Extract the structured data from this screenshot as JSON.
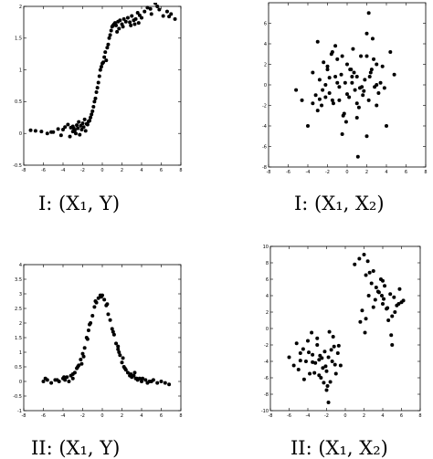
{
  "chart_data": [
    {
      "type": "scatter",
      "caption": "I: (X₁, Y)",
      "xlim": [
        -8,
        8
      ],
      "ylim": [
        -0.5,
        2.0
      ],
      "xticks": [
        -8,
        -6,
        -4,
        -2,
        0,
        2,
        4,
        6,
        8
      ],
      "yticks": [
        -0.5,
        0,
        0.5,
        1,
        1.5,
        2
      ],
      "ytick_labels": [
        "-0.5",
        "0",
        "0.5",
        "1",
        "1.5",
        "2"
      ],
      "grid": false,
      "x": [
        -7.3,
        -6.8,
        -6.2,
        -5.6,
        -5.0,
        -4.5,
        -4.0,
        -3.8,
        -3.5,
        -3.2,
        -3.0,
        -2.8,
        -2.6,
        -2.4,
        -2.2,
        -2.0,
        -1.8,
        -1.6,
        -1.4,
        -1.2,
        -3.3,
        -3.0,
        -2.7,
        -2.5,
        -2.3,
        -2.1,
        -1.9,
        -1.7,
        -1.5,
        -1.3,
        -1.1,
        -0.9,
        -0.7,
        -0.6,
        -0.5,
        -0.4,
        -0.3,
        -0.2,
        -0.1,
        0.0,
        0.1,
        0.2,
        0.3,
        0.5,
        0.6,
        0.7,
        0.8,
        0.9,
        1.0,
        1.1,
        1.2,
        1.3,
        1.4,
        1.6,
        1.8,
        2.0,
        2.2,
        2.4,
        2.6,
        2.8,
        3.0,
        3.2,
        3.4,
        3.6,
        3.8,
        4.0,
        4.3,
        4.6,
        5.0,
        5.4,
        5.8,
        6.2,
        6.6,
        7.0,
        7.4,
        -5.2,
        -4.2,
        -2.9,
        1.7,
        2.9,
        3.7,
        4.9,
        5.6,
        6.8,
        -1.0,
        -0.8,
        0.4,
        1.5,
        2.1,
        3.3
      ],
      "y": [
        0.05,
        0.04,
        0.03,
        0.0,
        0.02,
        0.07,
        0.06,
        0.1,
        0.14,
        0.09,
        0.11,
        0.05,
        0.13,
        0.18,
        0.12,
        0.16,
        0.22,
        0.15,
        0.19,
        0.25,
        -0.05,
        0.03,
        0.0,
        0.08,
        -0.02,
        0.06,
        0.1,
        0.04,
        0.14,
        0.2,
        0.3,
        0.42,
        0.55,
        0.65,
        0.72,
        0.8,
        0.9,
        1.0,
        1.05,
        1.1,
        1.12,
        1.2,
        1.28,
        1.35,
        1.4,
        1.5,
        1.55,
        1.62,
        1.68,
        1.7,
        1.72,
        1.74,
        1.7,
        1.76,
        1.78,
        1.72,
        1.8,
        1.76,
        1.82,
        1.75,
        1.85,
        1.78,
        1.8,
        1.9,
        1.86,
        1.82,
        1.92,
        1.98,
        1.88,
        2.05,
        1.95,
        1.85,
        1.92,
        1.88,
        1.8,
        0.02,
        -0.03,
        0.08,
        1.65,
        1.7,
        1.74,
        1.96,
        2.0,
        1.84,
        0.35,
        0.5,
        1.15,
        1.6,
        1.68,
        1.72
      ]
    },
    {
      "type": "scatter",
      "caption": "I: (X₁, X₂)",
      "xlim": [
        -8,
        8
      ],
      "ylim": [
        -8,
        8
      ],
      "xticks": [
        -8,
        -6,
        -4,
        -2,
        0,
        2,
        4,
        6,
        8
      ],
      "yticks": [
        -8,
        -6,
        -4,
        -2,
        0,
        2,
        4,
        6
      ],
      "ytick_labels": [
        "-8",
        "-6",
        "-4",
        "-2",
        "0",
        "2",
        "4",
        "6"
      ],
      "grid": false,
      "x": [
        -5.2,
        -4.6,
        -4.0,
        -3.5,
        -3.2,
        -3.0,
        -2.8,
        -2.6,
        -2.4,
        -2.2,
        -2.0,
        -1.8,
        -1.6,
        -1.4,
        -1.2,
        -1.0,
        -0.8,
        -0.6,
        -0.4,
        -0.2,
        0.0,
        0.2,
        0.4,
        0.6,
        0.8,
        1.0,
        1.2,
        1.4,
        1.6,
        1.8,
        2.0,
        2.2,
        2.4,
        2.6,
        2.8,
        3.0,
        3.2,
        3.4,
        3.6,
        4.0,
        4.4,
        4.8,
        -3.0,
        -2.5,
        -2.0,
        -1.5,
        -1.0,
        -0.5,
        0.0,
        0.5,
        1.0,
        1.5,
        2.0,
        2.5,
        3.0,
        -2.2,
        -1.2,
        -0.3,
        0.7,
        1.7,
        2.7,
        -1.8,
        -0.8,
        0.3,
        1.3,
        2.3,
        -0.5,
        1.0,
        -3.5,
        2.2,
        3.8,
        -1.5,
        0.5,
        2.0,
        3.0,
        -2.8,
        -0.1,
        1.1
      ],
      "y": [
        -0.5,
        -1.5,
        -4.0,
        1.2,
        -1.0,
        4.2,
        0.5,
        -2.0,
        2.2,
        0.0,
        1.5,
        -0.8,
        3.0,
        -1.8,
        0.8,
        2.5,
        -0.2,
        1.0,
        -3.0,
        0.2,
        2.0,
        -1.2,
        1.5,
        3.5,
        -0.5,
        0.8,
        -2.2,
        2.8,
        -1.0,
        0.5,
        5.0,
        -1.5,
        1.2,
        4.5,
        -0.2,
        2.0,
        -0.8,
        0.2,
        1.8,
        -4.0,
        3.2,
        1.0,
        -2.5,
        -0.5,
        1.8,
        -1.5,
        0.2,
        2.8,
        -0.9,
        0.8,
        -1.8,
        -0.2,
        -5.0,
        1.5,
        0.0,
        -1.2,
        3.8,
        -2.8,
        1.2,
        -0.6,
        2.5,
        0.7,
        -1.5,
        1.5,
        -0.3,
        0.8,
        -4.8,
        -3.2,
        -1.8,
        7.0,
        -0.3,
        3.2,
        0.2,
        2.8,
        -2.0,
        -1.4,
        -3.6,
        -7.0
      ]
    },
    {
      "type": "scatter",
      "caption": "II: (X₁, Y)",
      "xlim": [
        -8,
        8
      ],
      "ylim": [
        -1,
        4
      ],
      "xticks": [
        -8,
        -6,
        -4,
        -2,
        0,
        2,
        4,
        6,
        8
      ],
      "yticks": [
        -1,
        -0.5,
        0,
        0.5,
        1,
        1.5,
        2,
        2.5,
        3,
        3.5,
        4
      ],
      "ytick_labels": [
        "-1",
        "-0.5",
        "0",
        "0.5",
        "1",
        "1.5",
        "2",
        "2.5",
        "3",
        "3.5",
        "4"
      ],
      "grid": false,
      "x": [
        -6.0,
        -5.6,
        -5.2,
        -4.8,
        -4.4,
        -4.0,
        -3.8,
        -3.6,
        -3.4,
        -3.2,
        -3.0,
        -2.8,
        -2.6,
        -2.4,
        -2.2,
        -2.0,
        -1.8,
        -1.6,
        -1.4,
        -1.2,
        -1.0,
        -0.8,
        -0.6,
        -0.4,
        -0.2,
        0.0,
        0.2,
        0.4,
        0.6,
        0.8,
        1.0,
        1.2,
        1.4,
        1.6,
        1.8,
        2.0,
        2.2,
        2.4,
        2.6,
        2.8,
        3.0,
        3.2,
        3.4,
        3.6,
        3.8,
        4.0,
        4.4,
        4.8,
        5.2,
        5.6,
        6.0,
        6.4,
        6.8,
        -4.6,
        -3.9,
        -3.0,
        -2.5,
        -1.9,
        -1.3,
        -0.7,
        -0.1,
        0.5,
        1.1,
        1.7,
        2.3,
        2.9,
        3.5,
        4.1,
        5.0,
        -5.8,
        -2.1,
        -1.5,
        1.6,
        2.1,
        3.3,
        4.6
      ],
      "y": [
        0.0,
        0.05,
        -0.05,
        0.05,
        0.0,
        0.1,
        0.05,
        0.15,
        0.0,
        0.2,
        0.25,
        0.3,
        0.45,
        0.55,
        0.75,
        0.95,
        1.15,
        1.5,
        1.75,
        2.0,
        2.25,
        2.55,
        2.7,
        2.85,
        2.95,
        2.95,
        2.8,
        2.6,
        2.3,
        2.1,
        1.8,
        1.6,
        1.3,
        1.1,
        0.9,
        0.65,
        0.5,
        0.4,
        0.3,
        0.2,
        0.15,
        0.2,
        0.1,
        0.05,
        0.1,
        0.0,
        0.05,
        0.0,
        0.05,
        -0.05,
        0.0,
        -0.05,
        -0.1,
        0.05,
        0.15,
        0.1,
        0.5,
        0.85,
        1.95,
        2.75,
        2.9,
        2.65,
        1.7,
        1.0,
        0.45,
        0.25,
        0.1,
        0.1,
        0.0,
        0.1,
        0.6,
        1.45,
        1.2,
        0.8,
        0.3,
        -0.05
      ]
    },
    {
      "type": "scatter",
      "caption": "II: (X₁, X₂)",
      "xlim": [
        -8,
        8
      ],
      "ylim": [
        -10,
        10
      ],
      "xticks": [
        -8,
        -6,
        -4,
        -2,
        0,
        2,
        4,
        6,
        8
      ],
      "yticks": [
        -10,
        -8,
        -6,
        -4,
        -2,
        0,
        2,
        4,
        6,
        8,
        10
      ],
      "ytick_labels": [
        "-10",
        "-8",
        "-6",
        "-4",
        "-2",
        "0",
        "2",
        "4",
        "6",
        "8",
        "10"
      ],
      "grid": false,
      "x": [
        -6.0,
        -5.5,
        -5.0,
        -4.8,
        -4.5,
        -4.2,
        -4.0,
        -3.8,
        -3.5,
        -3.2,
        -3.0,
        -2.8,
        -2.6,
        -2.4,
        -2.2,
        -2.0,
        -1.8,
        -1.6,
        -1.4,
        -1.2,
        -1.0,
        -0.8,
        -0.5,
        -3.6,
        -3.0,
        -2.5,
        -1.9,
        -1.5,
        -1.1,
        -4.4,
        -3.3,
        -2.7,
        -2.1,
        -1.7,
        -5.2,
        -3.9,
        -2.3,
        -1.3,
        -0.7,
        -2.0,
        -1.8,
        -3.5,
        -2.8,
        -4.8,
        1.0,
        1.5,
        2.0,
        2.2,
        2.5,
        2.8,
        3.0,
        3.2,
        3.5,
        3.8,
        4.0,
        4.2,
        4.5,
        4.8,
        5.0,
        5.2,
        5.5,
        5.8,
        6.0,
        1.8,
        2.6,
        3.3,
        4.1,
        4.6,
        5.3,
        2.4,
        3.6,
        4.4,
        5.7,
        3.0,
        4.9,
        2.1,
        3.9,
        6.2,
        1.6,
        2.2,
        4.0,
        5.0
      ],
      "y": [
        -3.5,
        -4.5,
        -5.0,
        -3.0,
        -2.5,
        -4.0,
        -1.5,
        -5.5,
        -3.2,
        -4.2,
        -2.0,
        -3.8,
        -6.0,
        -4.8,
        -2.8,
        -5.2,
        -3.5,
        -6.5,
        -4.0,
        -2.2,
        -5.5,
        -3.0,
        -4.5,
        -0.5,
        -1.2,
        -3.6,
        -7.0,
        -2.6,
        -4.4,
        -6.2,
        -5.4,
        -3.3,
        -4.6,
        -0.4,
        -1.8,
        -2.9,
        -6.6,
        -1.0,
        -2.1,
        -7.5,
        -9.0,
        -4.1,
        -5.7,
        -3.9,
        7.8,
        8.5,
        9.0,
        6.5,
        4.0,
        5.5,
        7.0,
        3.5,
        4.5,
        6.0,
        3.0,
        5.2,
        2.5,
        4.2,
        1.5,
        3.8,
        2.8,
        4.8,
        3.2,
        2.2,
        6.8,
        5.0,
        3.6,
        1.0,
        2.0,
        8.2,
        4.4,
        2.4,
        3.0,
        2.6,
        -0.8,
        -0.5,
        4.0,
        3.4,
        0.8,
        1.2,
        5.8,
        -2.0
      ]
    }
  ]
}
